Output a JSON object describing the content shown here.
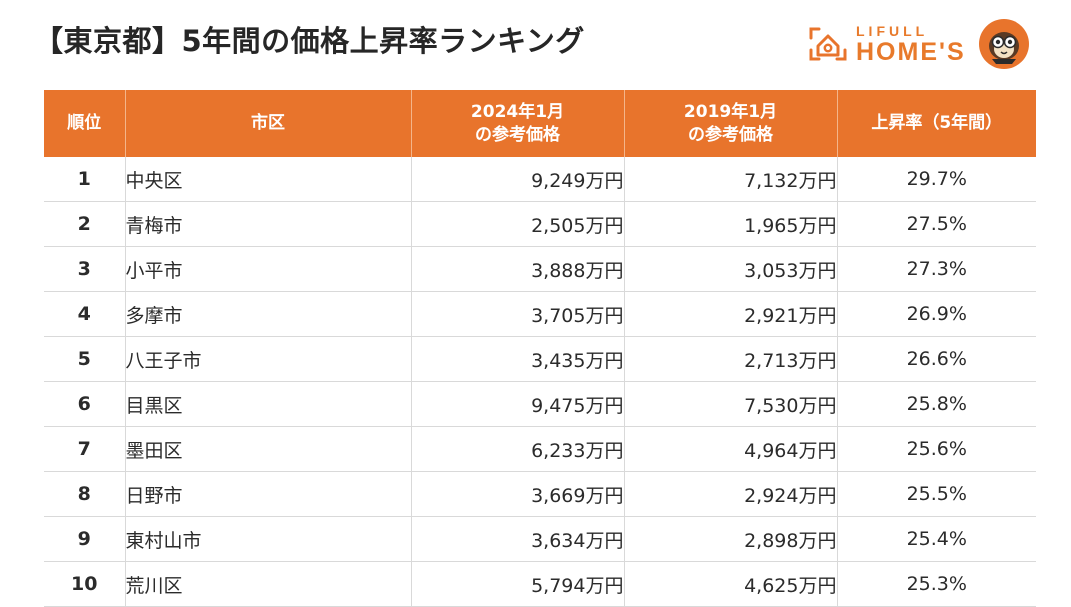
{
  "title": "【東京都】5年間の価格上昇率ランキング",
  "logo": {
    "top_text": "LIFULL",
    "bottom_text": "HOME'S",
    "brand_color": "#e8742c"
  },
  "table": {
    "headers": {
      "rank": "順位",
      "city": "市区",
      "price_2024_line1": "2024年1月",
      "price_2024_line2": "の参考価格",
      "price_2019_line1": "2019年1月",
      "price_2019_line2": "の参考価格",
      "rate": "上昇率（5年間）"
    },
    "rows": [
      {
        "rank": "1",
        "city": "中央区",
        "price_2024": "9,249万円",
        "price_2019": "7,132万円",
        "rate": "29.7%"
      },
      {
        "rank": "2",
        "city": "青梅市",
        "price_2024": "2,505万円",
        "price_2019": "1,965万円",
        "rate": "27.5%"
      },
      {
        "rank": "3",
        "city": "小平市",
        "price_2024": "3,888万円",
        "price_2019": "3,053万円",
        "rate": "27.3%"
      },
      {
        "rank": "4",
        "city": "多摩市",
        "price_2024": "3,705万円",
        "price_2019": "2,921万円",
        "rate": "26.9%"
      },
      {
        "rank": "5",
        "city": "八王子市",
        "price_2024": "3,435万円",
        "price_2019": "2,713万円",
        "rate": "26.6%"
      },
      {
        "rank": "6",
        "city": "目黒区",
        "price_2024": "9,475万円",
        "price_2019": "7,530万円",
        "rate": "25.8%"
      },
      {
        "rank": "7",
        "city": "墨田区",
        "price_2024": "6,233万円",
        "price_2019": "4,964万円",
        "rate": "25.6%"
      },
      {
        "rank": "8",
        "city": "日野市",
        "price_2024": "3,669万円",
        "price_2019": "2,924万円",
        "rate": "25.5%"
      },
      {
        "rank": "9",
        "city": "東村山市",
        "price_2024": "3,634万円",
        "price_2019": "2,898万円",
        "rate": "25.4%"
      },
      {
        "rank": "10",
        "city": "荒川区",
        "price_2024": "5,794万円",
        "price_2019": "4,625万円",
        "rate": "25.3%"
      }
    ]
  }
}
